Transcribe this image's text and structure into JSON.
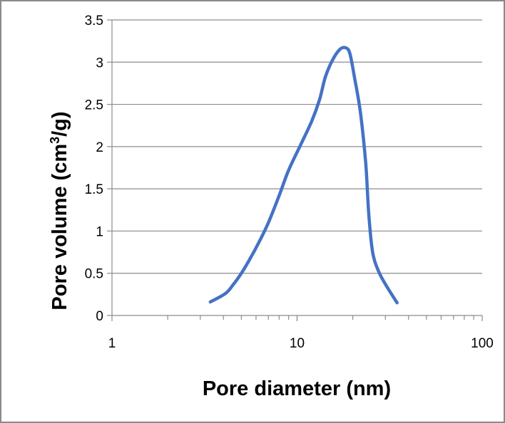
{
  "chart_data": {
    "type": "line",
    "title": "",
    "xlabel": "Pore diameter (nm)",
    "ylabel_parts": {
      "before": "Pore volume (cm",
      "sup": "3",
      "after": "/g)"
    },
    "x_scale": "log",
    "xlim": [
      1,
      100
    ],
    "ylim": [
      0,
      3.5
    ],
    "x_ticks": [
      "1",
      "10",
      "100"
    ],
    "y_ticks": [
      "0",
      "0.5",
      "1",
      "1.5",
      "2",
      "2.5",
      "3",
      "3.5"
    ],
    "grid": "horizontal",
    "legend": "none",
    "series": [
      {
        "color": "#4472c4",
        "x": [
          3.4,
          4.1,
          4.5,
          5.0,
          5.5,
          6.2,
          7.0,
          8.0,
          9.0,
          10.5,
          12.0,
          13.2,
          14.2,
          15.5,
          17.0,
          18.3,
          19.3,
          20.5,
          22.0,
          23.5,
          24.4,
          25.6,
          27.6,
          30.4,
          34.7
        ],
        "y": [
          0.16,
          0.26,
          0.36,
          0.5,
          0.65,
          0.86,
          1.1,
          1.42,
          1.72,
          2.03,
          2.3,
          2.55,
          2.82,
          3.02,
          3.15,
          3.17,
          3.1,
          2.8,
          2.4,
          1.8,
          1.2,
          0.75,
          0.52,
          0.35,
          0.15
        ]
      }
    ]
  }
}
